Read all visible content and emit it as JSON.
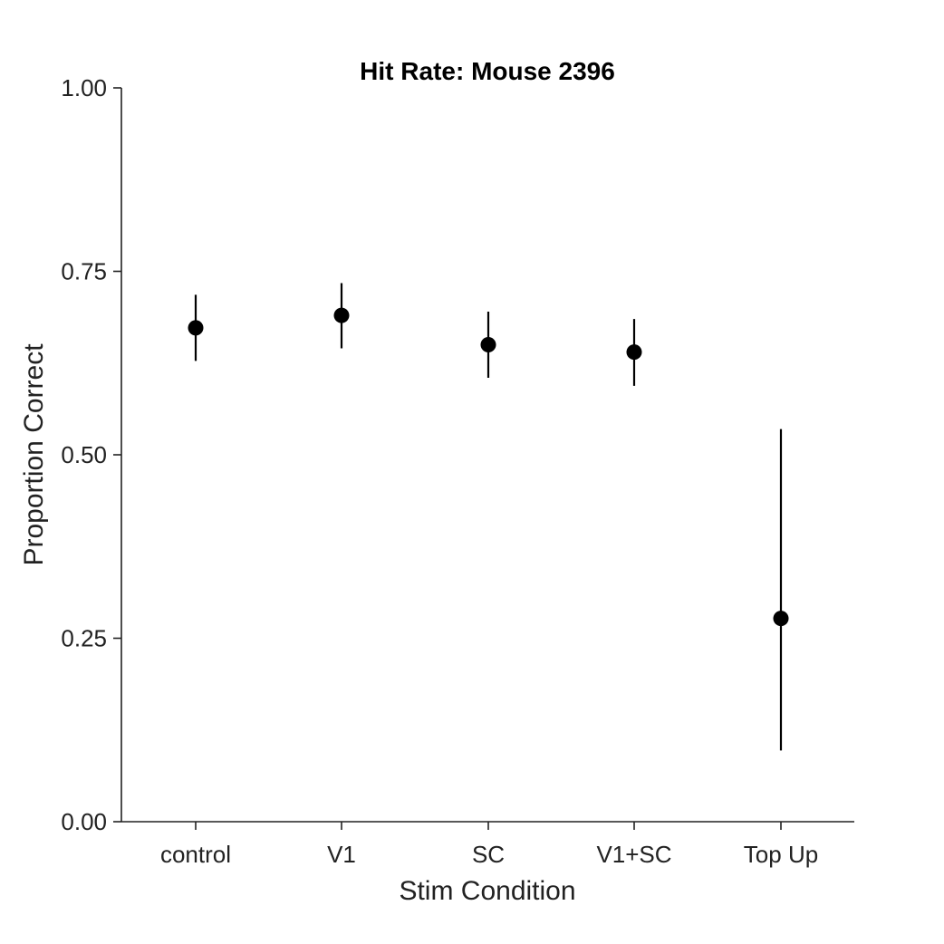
{
  "chart_data": {
    "type": "scatter",
    "title": "Hit Rate: Mouse 2396",
    "xlabel": "Stim Condition",
    "ylabel": "Proportion Correct",
    "ylim": [
      0,
      1
    ],
    "yticks": [
      "0.00",
      "0.25",
      "0.50",
      "0.75",
      "1.00"
    ],
    "categories": [
      "control",
      "V1",
      "SC",
      "V1+SC",
      "Top Up"
    ],
    "series": [
      {
        "values": [
          0.673,
          0.69,
          0.65,
          0.64,
          0.277
        ],
        "error_low": [
          0.628,
          0.645,
          0.605,
          0.594,
          0.097
        ],
        "error_high": [
          0.718,
          0.734,
          0.695,
          0.685,
          0.535
        ]
      }
    ],
    "grid": false,
    "marker_color": "#000000"
  }
}
